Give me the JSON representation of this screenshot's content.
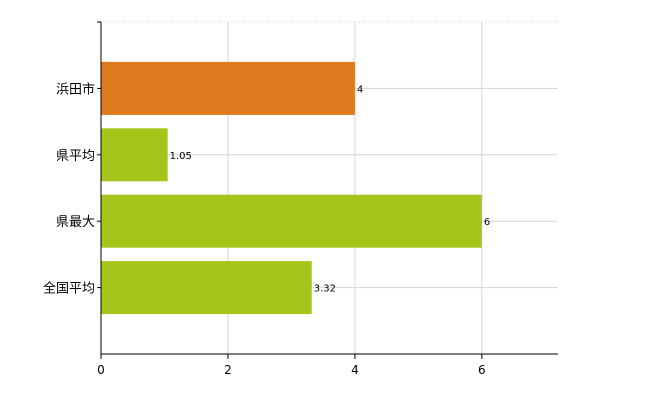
{
  "chart_data": {
    "type": "bar",
    "orientation": "horizontal",
    "categories": [
      "浜田市",
      "県平均",
      "県最大",
      "全国平均"
    ],
    "values": [
      4,
      1.05,
      6,
      3.32
    ],
    "value_labels": [
      "4",
      "1.05",
      "6",
      "3.32"
    ],
    "bar_colors": [
      "#e07a1f",
      "#a4c61a",
      "#a4c61a",
      "#a4c61a"
    ],
    "xlim": [
      0,
      7.2
    ],
    "xticks": [
      0,
      2,
      4,
      6
    ],
    "grid": true,
    "title": "",
    "xlabel": "",
    "ylabel": ""
  }
}
